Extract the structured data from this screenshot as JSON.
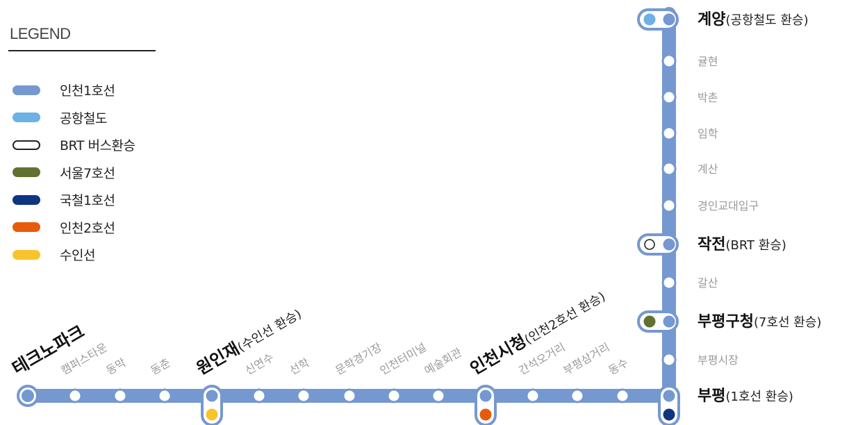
{
  "legend": {
    "title": "LEGEND",
    "items": [
      {
        "label": "인천1호선",
        "color": "#7598d0",
        "outline": false
      },
      {
        "label": "공항철도",
        "color": "#6cb2e6",
        "outline": false
      },
      {
        "label": "BRT 버스환승",
        "color": "#ffffff",
        "outline": true
      },
      {
        "label": "서울7호선",
        "color": "#627132",
        "outline": false
      },
      {
        "label": "국철1호선",
        "color": "#0f3580",
        "outline": false
      },
      {
        "label": "인천2호선",
        "color": "#e85b0c",
        "outline": false
      },
      {
        "label": "수인선",
        "color": "#f7c52b",
        "outline": false
      }
    ]
  },
  "colors": {
    "line": "#7598d0",
    "airport": "#6cb2e6",
    "seoul7": "#627132",
    "korail1": "#0f3580",
    "incheon2": "#e85b0c",
    "suin": "#f7c52b",
    "minor_text": "#9a9a9a"
  },
  "vertical_stations": [
    {
      "name": "계양",
      "note": "(공항철도 환승)",
      "major": true,
      "transfer": "airport"
    },
    {
      "name": "귤현",
      "note": "",
      "major": false,
      "transfer": null
    },
    {
      "name": "박촌",
      "note": "",
      "major": false,
      "transfer": null
    },
    {
      "name": "임학",
      "note": "",
      "major": false,
      "transfer": null
    },
    {
      "name": "계산",
      "note": "",
      "major": false,
      "transfer": null
    },
    {
      "name": "경인교대입구",
      "note": "",
      "major": false,
      "transfer": null
    },
    {
      "name": "작전",
      "note": "(BRT 환승)",
      "major": true,
      "transfer": "brt"
    },
    {
      "name": "갈산",
      "note": "",
      "major": false,
      "transfer": null
    },
    {
      "name": "부평구청",
      "note": "(7호선 환승)",
      "major": true,
      "transfer": "seoul7"
    },
    {
      "name": "부평시장",
      "note": "",
      "major": false,
      "transfer": null
    },
    {
      "name": "부평",
      "note": "(1호선 환승)",
      "major": true,
      "transfer": "korail1"
    }
  ],
  "horizontal_stations": [
    {
      "name": "테크노파크",
      "note": "",
      "major": true,
      "transfer": "terminal"
    },
    {
      "name": "캠퍼스타운",
      "note": "",
      "major": false,
      "transfer": null
    },
    {
      "name": "동막",
      "note": "",
      "major": false,
      "transfer": null
    },
    {
      "name": "동춘",
      "note": "",
      "major": false,
      "transfer": null
    },
    {
      "name": "원인재",
      "note": "(수인선 환승)",
      "major": true,
      "transfer": "suin"
    },
    {
      "name": "신연수",
      "note": "",
      "major": false,
      "transfer": null
    },
    {
      "name": "선학",
      "note": "",
      "major": false,
      "transfer": null
    },
    {
      "name": "문학경기장",
      "note": "",
      "major": false,
      "transfer": null
    },
    {
      "name": "인천터미널",
      "note": "",
      "major": false,
      "transfer": null
    },
    {
      "name": "예술회관",
      "note": "",
      "major": false,
      "transfer": null
    },
    {
      "name": "인천시청",
      "note": "(인천2호선 환승)",
      "major": true,
      "transfer": "incheon2"
    },
    {
      "name": "간석오거리",
      "note": "",
      "major": false,
      "transfer": null
    },
    {
      "name": "부평삼거리",
      "note": "",
      "major": false,
      "transfer": null
    },
    {
      "name": "동수",
      "note": "",
      "major": false,
      "transfer": null
    }
  ]
}
